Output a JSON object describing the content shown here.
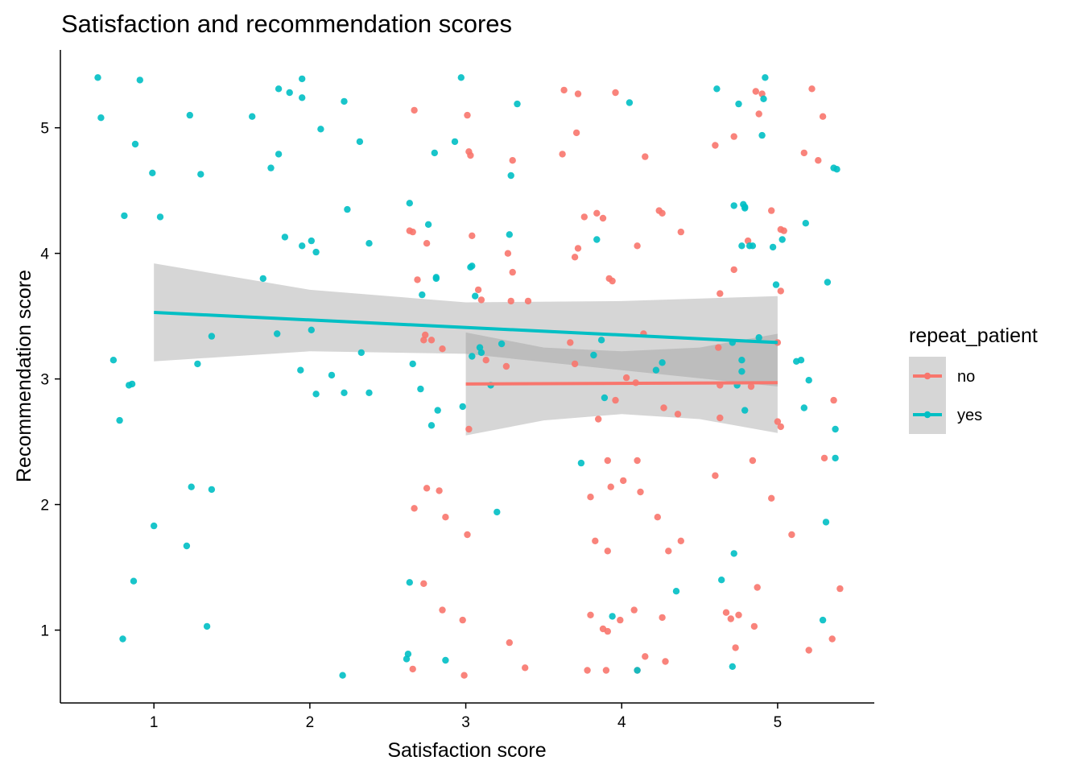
{
  "chart_data": {
    "type": "scatter",
    "title": "Satisfaction and recommendation scores",
    "xlabel": "Satisfaction score",
    "ylabel": "Recommendation score",
    "xlim": [
      0.4,
      5.62
    ],
    "ylim": [
      0.42,
      5.62
    ],
    "xticks": [
      1,
      2,
      3,
      4,
      5
    ],
    "yticks": [
      1,
      2,
      3,
      4,
      5
    ],
    "grid": false,
    "legend": {
      "title": "repeat_patient",
      "position": "right"
    },
    "series": [
      {
        "name": "no",
        "color": "#F8766D",
        "points": [
          [
            2.67,
            5.14
          ],
          [
            2.64,
            4.18
          ],
          [
            2.66,
            4.17
          ],
          [
            2.75,
            4.08
          ],
          [
            2.69,
            3.79
          ],
          [
            2.74,
            3.35
          ],
          [
            2.73,
            3.31
          ],
          [
            2.78,
            3.31
          ],
          [
            2.85,
            3.24
          ],
          [
            2.67,
            1.97
          ],
          [
            2.75,
            2.13
          ],
          [
            2.83,
            2.11
          ],
          [
            2.87,
            1.9
          ],
          [
            2.73,
            1.37
          ],
          [
            2.85,
            1.16
          ],
          [
            2.66,
            0.69
          ],
          [
            3.01,
            5.1
          ],
          [
            3.02,
            4.81
          ],
          [
            3.03,
            4.78
          ],
          [
            3.3,
            4.74
          ],
          [
            3.04,
            4.14
          ],
          [
            3.27,
            4.0
          ],
          [
            3.3,
            3.85
          ],
          [
            3.08,
            3.71
          ],
          [
            3.1,
            3.63
          ],
          [
            3.29,
            3.62
          ],
          [
            3.4,
            3.62
          ],
          [
            3.13,
            3.15
          ],
          [
            3.26,
            3.1
          ],
          [
            3.02,
            2.6
          ],
          [
            3.01,
            1.76
          ],
          [
            2.98,
            1.08
          ],
          [
            3.28,
            0.9
          ],
          [
            2.99,
            0.64
          ],
          [
            3.38,
            0.7
          ],
          [
            3.63,
            5.3
          ],
          [
            3.72,
            5.27
          ],
          [
            3.62,
            4.79
          ],
          [
            3.71,
            4.96
          ],
          [
            3.76,
            4.29
          ],
          [
            3.72,
            4.04
          ],
          [
            3.7,
            3.97
          ],
          [
            3.84,
            4.32
          ],
          [
            3.88,
            4.28
          ],
          [
            3.92,
            3.8
          ],
          [
            3.94,
            3.78
          ],
          [
            3.67,
            3.29
          ],
          [
            3.7,
            3.12
          ],
          [
            3.85,
            2.68
          ],
          [
            3.96,
            2.83
          ],
          [
            3.91,
            2.35
          ],
          [
            3.93,
            2.14
          ],
          [
            4.01,
            2.19
          ],
          [
            3.8,
            2.06
          ],
          [
            3.83,
            1.71
          ],
          [
            3.91,
            1.63
          ],
          [
            3.8,
            1.12
          ],
          [
            3.88,
            1.01
          ],
          [
            3.91,
            0.99
          ],
          [
            3.99,
            1.08
          ],
          [
            3.78,
            0.68
          ],
          [
            3.9,
            0.68
          ],
          [
            3.96,
            5.28
          ],
          [
            4.15,
            4.77
          ],
          [
            4.24,
            4.34
          ],
          [
            4.26,
            4.32
          ],
          [
            4.38,
            4.17
          ],
          [
            4.1,
            4.06
          ],
          [
            4.14,
            3.36
          ],
          [
            4.03,
            3.01
          ],
          [
            4.09,
            2.97
          ],
          [
            4.27,
            2.77
          ],
          [
            4.36,
            2.72
          ],
          [
            4.1,
            2.35
          ],
          [
            4.12,
            2.1
          ],
          [
            4.23,
            1.9
          ],
          [
            4.38,
            1.71
          ],
          [
            4.3,
            1.63
          ],
          [
            4.08,
            1.16
          ],
          [
            4.26,
            1.1
          ],
          [
            4.15,
            0.79
          ],
          [
            4.28,
            0.75
          ],
          [
            4.1,
            0.68
          ],
          [
            4.6,
            4.86
          ],
          [
            4.72,
            4.93
          ],
          [
            4.86,
            5.29
          ],
          [
            4.9,
            5.27
          ],
          [
            4.88,
            5.11
          ],
          [
            4.63,
            3.68
          ],
          [
            4.72,
            3.87
          ],
          [
            4.81,
            4.1
          ],
          [
            4.62,
            3.25
          ],
          [
            4.63,
            2.95
          ],
          [
            4.63,
            2.69
          ],
          [
            4.83,
            2.94
          ],
          [
            4.6,
            2.23
          ],
          [
            4.84,
            2.35
          ],
          [
            4.96,
            2.05
          ],
          [
            4.67,
            1.14
          ],
          [
            4.7,
            1.09
          ],
          [
            4.75,
            1.12
          ],
          [
            4.85,
            1.03
          ],
          [
            4.87,
            1.34
          ],
          [
            4.73,
            0.86
          ],
          [
            4.96,
            4.34
          ],
          [
            5.02,
            4.19
          ],
          [
            5.04,
            4.18
          ],
          [
            5.02,
            3.7
          ],
          [
            5.0,
            3.29
          ],
          [
            5.0,
            2.66
          ],
          [
            5.02,
            2.62
          ],
          [
            5.09,
            1.76
          ],
          [
            5.17,
            4.8
          ],
          [
            5.22,
            5.31
          ],
          [
            5.26,
            4.74
          ],
          [
            5.29,
            5.09
          ],
          [
            5.36,
            2.83
          ],
          [
            5.3,
            2.37
          ],
          [
            5.4,
            1.33
          ],
          [
            5.2,
            0.84
          ],
          [
            5.35,
            0.93
          ]
        ],
        "fit": {
          "x": [
            3,
            5
          ],
          "y": [
            2.96,
            2.97
          ]
        }
      },
      {
        "name": "yes",
        "color": "#00BFC4",
        "points": [
          [
            0.64,
            5.4
          ],
          [
            0.66,
            5.08
          ],
          [
            0.91,
            5.38
          ],
          [
            0.88,
            4.87
          ],
          [
            0.99,
            4.64
          ],
          [
            0.81,
            4.3
          ],
          [
            1.04,
            4.29
          ],
          [
            0.74,
            3.15
          ],
          [
            0.78,
            2.67
          ],
          [
            0.84,
            2.95
          ],
          [
            0.86,
            2.96
          ],
          [
            1.0,
            1.83
          ],
          [
            0.87,
            1.39
          ],
          [
            0.8,
            0.93
          ],
          [
            1.23,
            5.1
          ],
          [
            1.3,
            4.63
          ],
          [
            1.28,
            3.12
          ],
          [
            1.37,
            3.34
          ],
          [
            1.24,
            2.14
          ],
          [
            1.37,
            2.12
          ],
          [
            1.21,
            1.67
          ],
          [
            1.34,
            1.03
          ],
          [
            1.8,
            5.31
          ],
          [
            1.87,
            5.28
          ],
          [
            1.95,
            5.39
          ],
          [
            1.95,
            5.24
          ],
          [
            1.63,
            5.09
          ],
          [
            1.8,
            4.79
          ],
          [
            1.75,
            4.68
          ],
          [
            1.84,
            4.13
          ],
          [
            1.95,
            4.06
          ],
          [
            2.01,
            4.1
          ],
          [
            2.04,
            4.01
          ],
          [
            1.7,
            3.8
          ],
          [
            1.79,
            3.36
          ],
          [
            2.01,
            3.39
          ],
          [
            1.94,
            3.07
          ],
          [
            2.04,
            2.88
          ],
          [
            2.07,
            4.99
          ],
          [
            2.22,
            5.21
          ],
          [
            2.32,
            4.89
          ],
          [
            2.24,
            4.35
          ],
          [
            2.38,
            4.08
          ],
          [
            2.33,
            3.21
          ],
          [
            2.14,
            3.03
          ],
          [
            2.22,
            2.89
          ],
          [
            2.38,
            2.89
          ],
          [
            2.21,
            0.64
          ],
          [
            2.64,
            4.4
          ],
          [
            2.76,
            4.23
          ],
          [
            2.8,
            4.8
          ],
          [
            2.81,
            3.81
          ],
          [
            2.81,
            3.8
          ],
          [
            2.72,
            3.67
          ],
          [
            2.66,
            3.12
          ],
          [
            2.71,
            2.92
          ],
          [
            2.82,
            2.75
          ],
          [
            2.78,
            2.63
          ],
          [
            2.64,
            1.38
          ],
          [
            2.63,
            0.81
          ],
          [
            2.62,
            0.77
          ],
          [
            2.87,
            0.76
          ],
          [
            2.93,
            4.89
          ],
          [
            2.97,
            5.4
          ],
          [
            3.29,
            4.62
          ],
          [
            3.33,
            5.19
          ],
          [
            3.03,
            3.89
          ],
          [
            3.04,
            3.9
          ],
          [
            3.28,
            4.15
          ],
          [
            3.06,
            3.66
          ],
          [
            3.09,
            3.25
          ],
          [
            3.04,
            3.18
          ],
          [
            3.1,
            3.21
          ],
          [
            3.23,
            3.28
          ],
          [
            3.16,
            2.95
          ],
          [
            2.98,
            2.78
          ],
          [
            3.2,
            1.94
          ],
          [
            4.05,
            5.2
          ],
          [
            3.84,
            4.11
          ],
          [
            3.74,
            2.33
          ],
          [
            3.87,
            3.31
          ],
          [
            3.82,
            3.19
          ],
          [
            3.89,
            2.85
          ],
          [
            4.22,
            3.07
          ],
          [
            4.26,
            3.13
          ],
          [
            3.94,
            1.11
          ],
          [
            4.1,
            0.68
          ],
          [
            4.35,
            1.31
          ],
          [
            4.61,
            5.31
          ],
          [
            4.92,
            5.4
          ],
          [
            4.91,
            5.23
          ],
          [
            4.75,
            5.19
          ],
          [
            4.9,
            4.94
          ],
          [
            4.72,
            4.38
          ],
          [
            4.78,
            4.39
          ],
          [
            4.79,
            4.36
          ],
          [
            4.79,
            4.37
          ],
          [
            4.77,
            4.06
          ],
          [
            4.82,
            4.06
          ],
          [
            4.84,
            4.06
          ],
          [
            4.97,
            4.05
          ],
          [
            4.99,
            3.75
          ],
          [
            4.88,
            3.33
          ],
          [
            4.77,
            3.15
          ],
          [
            4.77,
            3.06
          ],
          [
            4.71,
            3.29
          ],
          [
            4.79,
            2.75
          ],
          [
            4.74,
            2.95
          ],
          [
            4.64,
            1.4
          ],
          [
            4.72,
            1.61
          ],
          [
            4.71,
            0.71
          ],
          [
            5.03,
            4.11
          ],
          [
            5.18,
            4.24
          ],
          [
            5.12,
            3.14
          ],
          [
            5.15,
            3.15
          ],
          [
            5.17,
            2.77
          ],
          [
            5.2,
            2.99
          ],
          [
            5.32,
            3.77
          ],
          [
            5.36,
            4.68
          ],
          [
            5.38,
            4.67
          ],
          [
            5.37,
            2.6
          ],
          [
            5.37,
            2.37
          ],
          [
            5.31,
            1.86
          ],
          [
            5.29,
            1.08
          ]
        ],
        "fit": {
          "x": [
            1,
            5
          ],
          "y": [
            3.53,
            3.29
          ]
        }
      }
    ],
    "bands": [
      {
        "series": "yes",
        "x": [
          1,
          2,
          3,
          4,
          5
        ],
        "upper": [
          3.92,
          3.71,
          3.61,
          3.62,
          3.66
        ],
        "lower": [
          3.14,
          3.22,
          3.2,
          3.07,
          2.94
        ]
      },
      {
        "series": "no",
        "x": [
          3,
          3.5,
          4,
          4.5,
          5
        ],
        "upper": [
          3.37,
          3.25,
          3.22,
          3.25,
          3.36
        ],
        "lower": [
          2.55,
          2.67,
          2.72,
          2.68,
          2.57
        ]
      }
    ]
  }
}
